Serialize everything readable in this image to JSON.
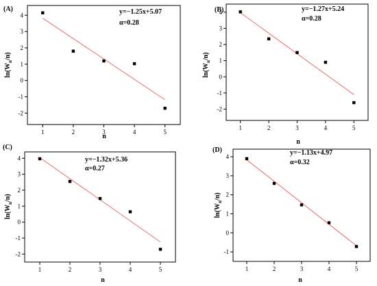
{
  "chart_data": [
    {
      "type": "scatter",
      "label": "(A)",
      "equation": "y=−1.25x+5.07",
      "alpha": "α=0.28",
      "xlabel": "n",
      "ylabel_main": "ln(W",
      "ylabel_sub": "n",
      "ylabel_end": "/n)",
      "xlim": [
        0.5,
        5.5
      ],
      "ylim": [
        -2.7,
        4.6
      ],
      "xticks": [
        1,
        2,
        3,
        4,
        5
      ],
      "yticks": [
        -2,
        -1,
        0,
        1,
        2,
        3,
        4
      ],
      "points": [
        [
          1,
          4.15
        ],
        [
          2,
          1.8
        ],
        [
          3,
          1.2
        ],
        [
          4,
          1.03
        ],
        [
          5,
          -1.7
        ]
      ],
      "fit": {
        "slope": -1.25,
        "intercept": 5.07,
        "color": "#ee6a6a"
      },
      "marker_color": "#000000"
    },
    {
      "type": "scatter",
      "label": "(B)",
      "equation": "y=−1.27x+5.24",
      "alpha": "α=0.28",
      "xlabel": "n",
      "ylabel_main": "ln(W",
      "ylabel_sub": "n",
      "ylabel_end": "/n)",
      "xlim": [
        0.5,
        5.5
      ],
      "ylim": [
        -2.7,
        4.5
      ],
      "xticks": [
        1,
        2,
        3,
        4,
        5
      ],
      "yticks": [
        -2,
        -1,
        0,
        1,
        2,
        3,
        4
      ],
      "points": [
        [
          1,
          4.02
        ],
        [
          2,
          2.35
        ],
        [
          3,
          1.5
        ],
        [
          4,
          0.9
        ],
        [
          5,
          -1.6
        ]
      ],
      "fit": {
        "slope": -1.27,
        "intercept": 5.24,
        "color": "#ee6a6a"
      },
      "marker_color": "#000000"
    },
    {
      "type": "scatter",
      "label": "(C)",
      "equation": "y=−1.32x+5.36",
      "alpha": "α=0.27",
      "xlabel": "n",
      "ylabel_main": "ln(W",
      "ylabel_sub": "n",
      "ylabel_end": "/n)",
      "xlim": [
        0.5,
        5.5
      ],
      "ylim": [
        -2.5,
        4.4
      ],
      "xticks": [
        1,
        2,
        3,
        4,
        5
      ],
      "yticks": [
        -2,
        -1,
        0,
        1,
        2,
        3,
        4
      ],
      "points": [
        [
          1,
          3.97
        ],
        [
          2,
          2.55
        ],
        [
          3,
          1.48
        ],
        [
          4,
          0.65
        ],
        [
          5,
          -1.7
        ]
      ],
      "fit": {
        "slope": -1.32,
        "intercept": 5.36,
        "color": "#ee6a6a"
      },
      "marker_color": "#000000"
    },
    {
      "type": "scatter",
      "label": "(D)",
      "equation": "y=−1.13x+4.97",
      "alpha": "α=0.32",
      "xlabel": "n",
      "ylabel_main": "ln(W",
      "ylabel_sub": "n",
      "ylabel_end": "/n)",
      "xlim": [
        0.5,
        5.5
      ],
      "ylim": [
        -1.5,
        4.4
      ],
      "xticks": [
        1,
        2,
        3,
        4,
        5
      ],
      "yticks": [
        -1,
        0,
        1,
        2,
        3,
        4
      ],
      "points": [
        [
          1,
          3.9
        ],
        [
          2,
          2.6
        ],
        [
          3,
          1.47
        ],
        [
          4,
          0.53
        ],
        [
          5,
          -0.72
        ]
      ],
      "fit": {
        "slope": -1.13,
        "intercept": 4.97,
        "color": "#ee6a6a"
      },
      "marker_color": "#000000"
    }
  ]
}
